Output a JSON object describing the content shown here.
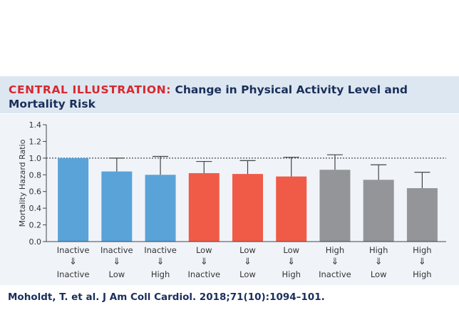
{
  "header": {
    "lead": "CENTRAL ILLUSTRATION:",
    "title": "Change in Physical Activity Level and Mortality Risk"
  },
  "citation": "Moholdt, T. et al. J Am Coll Cardiol. 2018;71(10):1094–101.",
  "colors": {
    "inactive": "#5aa3d9",
    "low": "#f05b48",
    "high": "#939598",
    "accent_red": "#d9272e",
    "navy": "#1b2f5b"
  },
  "chart_data": {
    "type": "bar",
    "ylabel": "Mortality Hazard Ratio",
    "ylim": [
      0,
      1.4
    ],
    "yticks": [
      "0.0",
      "0.2",
      "0.4",
      "0.6",
      "0.8",
      "1.0",
      "1.2",
      "1.4"
    ],
    "reference_line": 1.0,
    "arrow": "⇓",
    "categories": [
      {
        "from": "Inactive",
        "to": "Inactive",
        "group": "inactive"
      },
      {
        "from": "Inactive",
        "to": "Low",
        "group": "inactive"
      },
      {
        "from": "Inactive",
        "to": "High",
        "group": "inactive"
      },
      {
        "from": "Low",
        "to": "Inactive",
        "group": "low"
      },
      {
        "from": "Low",
        "to": "Low",
        "group": "low"
      },
      {
        "from": "Low",
        "to": "High",
        "group": "low"
      },
      {
        "from": "High",
        "to": "Inactive",
        "group": "high"
      },
      {
        "from": "High",
        "to": "Low",
        "group": "high"
      },
      {
        "from": "High",
        "to": "High",
        "group": "high"
      }
    ],
    "values": [
      1.0,
      0.84,
      0.8,
      0.82,
      0.81,
      0.78,
      0.86,
      0.74,
      0.64
    ],
    "upper_ci": [
      1.0,
      1.0,
      1.02,
      0.96,
      0.97,
      1.01,
      1.04,
      0.92,
      0.83
    ]
  }
}
